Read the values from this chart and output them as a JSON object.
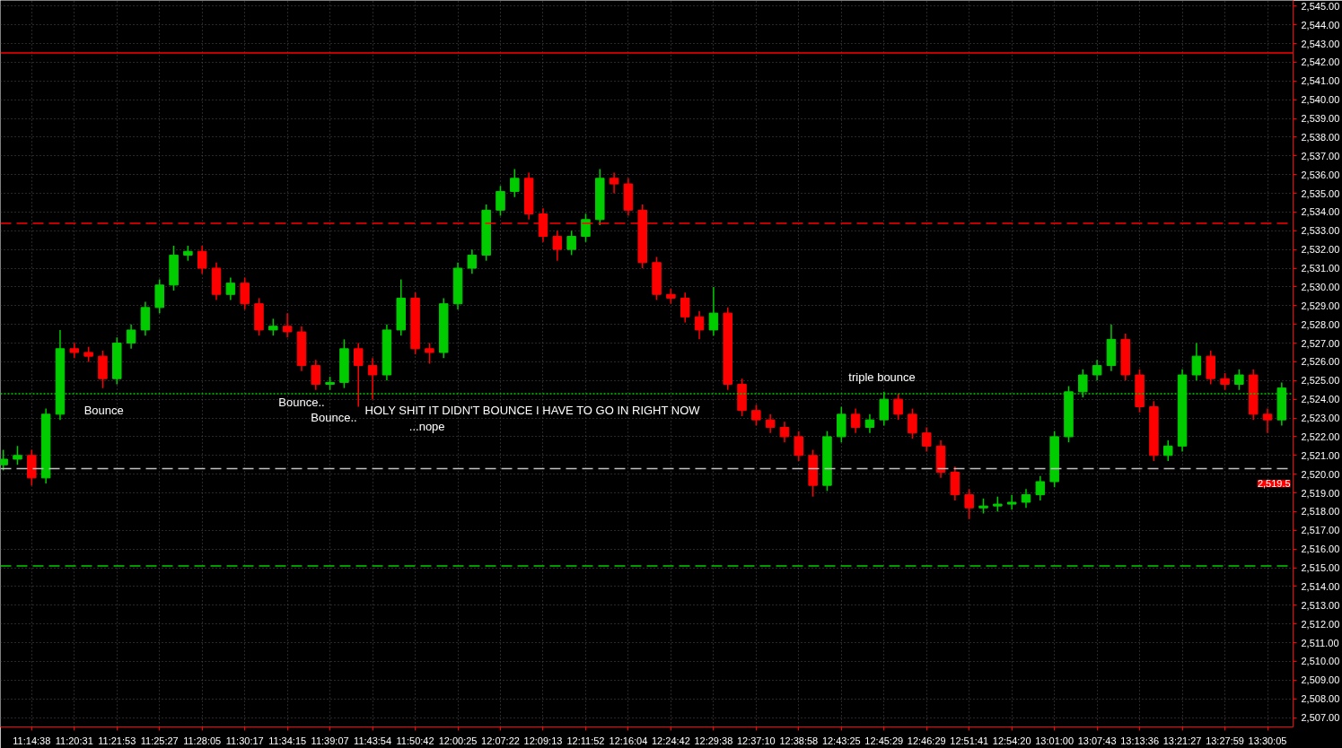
{
  "chart_data": {
    "type": "candlestick",
    "categories": [
      null,
      null,
      "11:14:38",
      null,
      null,
      "11:20:31",
      null,
      null,
      "11:21:53",
      null,
      null,
      "11:25:27",
      null,
      null,
      "11:28:05",
      null,
      null,
      "11:30:17",
      null,
      null,
      "11:34:15",
      null,
      null,
      "11:39:07",
      null,
      null,
      "11:43:54",
      null,
      null,
      "11:50:42",
      null,
      null,
      "12:00:25",
      null,
      null,
      "12:07:22",
      null,
      null,
      "12:09:13",
      null,
      null,
      "12:11:52",
      null,
      null,
      "12:16:04",
      null,
      null,
      "12:24:42",
      null,
      null,
      "12:29:38",
      null,
      null,
      "12:37:10",
      null,
      null,
      "12:38:58",
      null,
      null,
      "12:43:25",
      null,
      null,
      "12:45:29",
      null,
      null,
      "12:46:29",
      null,
      null,
      "12:51:41",
      null,
      null,
      "12:54:20",
      null,
      null,
      "13:01:00",
      null,
      null,
      "13:07:43",
      null,
      null,
      "13:13:36",
      null,
      null,
      "13:21:27",
      null,
      null,
      "13:27:59",
      null,
      null,
      "13:30:05",
      null
    ],
    "ohlc": [
      [
        2520.5,
        2521.3,
        2520.2,
        2520.8
      ],
      [
        2520.8,
        2521.5,
        2520.5,
        2521.0
      ],
      [
        2521.0,
        2521.3,
        2519.4,
        2519.8
      ],
      [
        2519.8,
        2523.5,
        2519.5,
        2523.2
      ],
      [
        2523.2,
        2527.7,
        2522.9,
        2526.7
      ],
      [
        2526.7,
        2527.0,
        2526.2,
        2526.5
      ],
      [
        2526.5,
        2526.8,
        2526.0,
        2526.3
      ],
      [
        2526.3,
        2526.6,
        2524.6,
        2525.1
      ],
      [
        2525.1,
        2527.3,
        2524.8,
        2527.0
      ],
      [
        2527.0,
        2528.0,
        2526.7,
        2527.7
      ],
      [
        2527.7,
        2529.2,
        2527.4,
        2528.9
      ],
      [
        2528.9,
        2530.4,
        2528.6,
        2530.1
      ],
      [
        2530.1,
        2532.2,
        2529.8,
        2531.7
      ],
      [
        2531.7,
        2532.2,
        2531.4,
        2531.9
      ],
      [
        2531.9,
        2532.2,
        2530.7,
        2531.0
      ],
      [
        2531.0,
        2531.3,
        2529.3,
        2529.6
      ],
      [
        2529.6,
        2530.5,
        2529.3,
        2530.2
      ],
      [
        2530.2,
        2530.5,
        2528.8,
        2529.1
      ],
      [
        2529.1,
        2529.4,
        2527.4,
        2527.7
      ],
      [
        2527.7,
        2528.3,
        2527.4,
        2527.9
      ],
      [
        2527.9,
        2528.6,
        2527.3,
        2527.6
      ],
      [
        2527.6,
        2527.9,
        2525.5,
        2525.8
      ],
      [
        2525.8,
        2526.1,
        2524.5,
        2524.8
      ],
      [
        2524.8,
        2525.2,
        2524.5,
        2524.9
      ],
      [
        2524.9,
        2527.2,
        2524.6,
        2526.7
      ],
      [
        2526.7,
        2527.0,
        2523.6,
        2525.8
      ],
      [
        2525.8,
        2526.2,
        2524.0,
        2525.3
      ],
      [
        2525.3,
        2528.0,
        2525.0,
        2527.7
      ],
      [
        2527.7,
        2530.4,
        2527.4,
        2529.4
      ],
      [
        2529.4,
        2529.7,
        2526.4,
        2526.7
      ],
      [
        2526.7,
        2527.0,
        2525.9,
        2526.5
      ],
      [
        2526.5,
        2529.4,
        2526.2,
        2529.1
      ],
      [
        2529.1,
        2531.3,
        2528.8,
        2531.0
      ],
      [
        2531.0,
        2532.0,
        2530.7,
        2531.7
      ],
      [
        2531.7,
        2534.4,
        2531.4,
        2534.1
      ],
      [
        2534.1,
        2535.4,
        2533.8,
        2535.1
      ],
      [
        2535.1,
        2536.3,
        2534.8,
        2535.8
      ],
      [
        2535.8,
        2536.1,
        2533.6,
        2533.9
      ],
      [
        2533.9,
        2534.2,
        2532.4,
        2532.7
      ],
      [
        2532.7,
        2533.0,
        2531.4,
        2532.0
      ],
      [
        2532.0,
        2533.0,
        2531.7,
        2532.7
      ],
      [
        2532.7,
        2533.9,
        2532.4,
        2533.6
      ],
      [
        2533.6,
        2536.3,
        2533.3,
        2535.8
      ],
      [
        2535.8,
        2536.1,
        2535.0,
        2535.5
      ],
      [
        2535.5,
        2535.8,
        2533.8,
        2534.1
      ],
      [
        2534.1,
        2534.4,
        2531.0,
        2531.3
      ],
      [
        2531.3,
        2531.6,
        2529.3,
        2529.6
      ],
      [
        2529.6,
        2529.9,
        2529.1,
        2529.4
      ],
      [
        2529.4,
        2529.7,
        2528.1,
        2528.4
      ],
      [
        2528.4,
        2528.7,
        2527.2,
        2527.7
      ],
      [
        2527.7,
        2530.0,
        2527.4,
        2528.6
      ],
      [
        2528.6,
        2528.9,
        2524.5,
        2524.8
      ],
      [
        2524.8,
        2525.1,
        2523.1,
        2523.4
      ],
      [
        2523.4,
        2523.7,
        2522.6,
        2522.9
      ],
      [
        2522.9,
        2523.2,
        2522.2,
        2522.5
      ],
      [
        2522.5,
        2522.8,
        2521.7,
        2522.0
      ],
      [
        2522.0,
        2522.3,
        2520.7,
        2521.0
      ],
      [
        2521.0,
        2521.3,
        2518.8,
        2519.4
      ],
      [
        2519.4,
        2522.3,
        2519.1,
        2522.0
      ],
      [
        2522.0,
        2523.6,
        2521.7,
        2523.2
      ],
      [
        2523.2,
        2523.5,
        2522.2,
        2522.5
      ],
      [
        2522.5,
        2523.2,
        2522.2,
        2522.9
      ],
      [
        2522.9,
        2524.4,
        2522.6,
        2524.0
      ],
      [
        2524.0,
        2524.3,
        2522.9,
        2523.2
      ],
      [
        2523.2,
        2523.5,
        2521.9,
        2522.2
      ],
      [
        2522.2,
        2522.5,
        2521.2,
        2521.5
      ],
      [
        2521.5,
        2521.8,
        2519.8,
        2520.1
      ],
      [
        2520.1,
        2520.4,
        2518.6,
        2518.9
      ],
      [
        2518.9,
        2519.2,
        2517.6,
        2518.2
      ],
      [
        2518.2,
        2518.7,
        2517.9,
        2518.3
      ],
      [
        2518.3,
        2518.8,
        2518.0,
        2518.4
      ],
      [
        2518.4,
        2518.9,
        2518.1,
        2518.5
      ],
      [
        2518.5,
        2519.2,
        2518.2,
        2518.9
      ],
      [
        2518.9,
        2519.9,
        2518.6,
        2519.6
      ],
      [
        2519.6,
        2522.3,
        2519.3,
        2522.0
      ],
      [
        2522.0,
        2524.7,
        2521.7,
        2524.4
      ],
      [
        2524.4,
        2525.6,
        2524.1,
        2525.3
      ],
      [
        2525.3,
        2526.1,
        2525.0,
        2525.8
      ],
      [
        2525.8,
        2528.0,
        2525.5,
        2527.2
      ],
      [
        2527.2,
        2527.5,
        2525.0,
        2525.3
      ],
      [
        2525.3,
        2525.6,
        2523.3,
        2523.6
      ],
      [
        2523.6,
        2523.9,
        2520.7,
        2521.0
      ],
      [
        2521.0,
        2521.8,
        2520.7,
        2521.5
      ],
      [
        2521.5,
        2525.6,
        2521.2,
        2525.3
      ],
      [
        2525.3,
        2527.0,
        2525.0,
        2526.3
      ],
      [
        2526.3,
        2526.6,
        2524.8,
        2525.1
      ],
      [
        2525.1,
        2525.4,
        2524.5,
        2524.8
      ],
      [
        2524.8,
        2525.6,
        2524.5,
        2525.3
      ],
      [
        2525.3,
        2525.6,
        2522.9,
        2523.2
      ],
      [
        2523.2,
        2523.5,
        2522.2,
        2522.9
      ],
      [
        2522.9,
        2524.9,
        2522.6,
        2524.6
      ]
    ],
    "colors": [
      "#00cc00",
      "#00cc00",
      "#ff0000",
      "#00cc00",
      "#00cc00",
      "#ff0000",
      "#ff0000",
      "#ff0000",
      "#00cc00",
      "#00cc00",
      "#00cc00",
      "#00cc00",
      "#00cc00",
      "#00cc00",
      "#ff0000",
      "#ff0000",
      "#00cc00",
      "#ff0000",
      "#ff0000",
      "#00cc00",
      "#ff0000",
      "#ff0000",
      "#ff0000",
      "#00cc00",
      "#00cc00",
      "#ff0000",
      "#ff0000",
      "#00cc00",
      "#00cc00",
      "#ff0000",
      "#ff0000",
      "#00cc00",
      "#00cc00",
      "#00cc00",
      "#00cc00",
      "#00cc00",
      "#00cc00",
      "#ff0000",
      "#ff0000",
      "#ff0000",
      "#00cc00",
      "#00cc00",
      "#00cc00",
      "#ff0000",
      "#ff0000",
      "#ff0000",
      "#ff0000",
      "#ff0000",
      "#ff0000",
      "#ff0000",
      "#00cc00",
      "#ff0000",
      "#ff0000",
      "#ff0000",
      "#ff0000",
      "#ff0000",
      "#ff0000",
      "#ff0000",
      "#00cc00",
      "#00cc00",
      "#ff0000",
      "#00cc00",
      "#00cc00",
      "#ff0000",
      "#ff0000",
      "#ff0000",
      "#ff0000",
      "#ff0000",
      "#ff0000",
      "#00cc00",
      "#00cc00",
      "#00cc00",
      "#00cc00",
      "#00cc00",
      "#00cc00",
      "#00cc00",
      "#00cc00",
      "#00cc00",
      "#00cc00",
      "#ff0000",
      "#ff0000",
      "#ff0000",
      "#00cc00",
      "#00cc00",
      "#00cc00",
      "#ff0000",
      "#ff0000",
      "#00cc00",
      "#ff0000",
      "#ff0000",
      "#00cc00"
    ],
    "ylim": [
      2506.5,
      2545.3
    ],
    "yticks": [
      {
        "value": 2507,
        "label": "2,507.00"
      },
      {
        "value": 2508,
        "label": "2,508.00"
      },
      {
        "value": 2509,
        "label": "2,509.00"
      },
      {
        "value": 2510,
        "label": "2,510.00"
      },
      {
        "value": 2511,
        "label": "2,511.00"
      },
      {
        "value": 2512,
        "label": "2,512.00"
      },
      {
        "value": 2513,
        "label": "2,513.00"
      },
      {
        "value": 2514,
        "label": "2,514.00"
      },
      {
        "value": 2515,
        "label": "2,515.00"
      },
      {
        "value": 2516,
        "label": "2,516.00"
      },
      {
        "value": 2517,
        "label": "2,517.00"
      },
      {
        "value": 2518,
        "label": "2,518.00"
      },
      {
        "value": 2519,
        "label": "2,519.00"
      },
      {
        "value": 2520,
        "label": "2,520.00"
      },
      {
        "value": 2521,
        "label": "2,521.00"
      },
      {
        "value": 2522,
        "label": "2,522.00"
      },
      {
        "value": 2523,
        "label": "2,523.00"
      },
      {
        "value": 2524,
        "label": "2,524.00"
      },
      {
        "value": 2525,
        "label": "2,525.00"
      },
      {
        "value": 2526,
        "label": "2,526.00"
      },
      {
        "value": 2527,
        "label": "2,527.00"
      },
      {
        "value": 2528,
        "label": "2,528.00"
      },
      {
        "value": 2529,
        "label": "2,529.00"
      },
      {
        "value": 2530,
        "label": "2,530.00"
      },
      {
        "value": 2531,
        "label": "2,531.00"
      },
      {
        "value": 2532,
        "label": "2,532.00"
      },
      {
        "value": 2533,
        "label": "2,533.00"
      },
      {
        "value": 2534,
        "label": "2,534.00"
      },
      {
        "value": 2535,
        "label": "2,535.00"
      },
      {
        "value": 2536,
        "label": "2,536.00"
      },
      {
        "value": 2537,
        "label": "2,537.00"
      },
      {
        "value": 2538,
        "label": "2,538.00"
      },
      {
        "value": 2539,
        "label": "2,539.00"
      },
      {
        "value": 2540,
        "label": "2,540.00"
      },
      {
        "value": 2541,
        "label": "2,541.00"
      },
      {
        "value": 2542,
        "label": "2,542.00"
      },
      {
        "value": 2543,
        "label": "2,543.00"
      },
      {
        "value": 2544,
        "label": "2,544.00"
      },
      {
        "value": 2545,
        "label": "2,545.00"
      }
    ],
    "ref_lines": [
      {
        "axis": "y",
        "value": 2542.5,
        "color": "#ff0000",
        "line_style": "solid"
      },
      {
        "axis": "y",
        "value": 2533.4,
        "color": "#ff0000",
        "line_style": "dashed"
      },
      {
        "axis": "y",
        "value": 2524.3,
        "color": "#00cc00",
        "line_style": "dotted"
      },
      {
        "axis": "y",
        "value": 2520.3,
        "color": "#c0c0c0",
        "line_style": "dashed"
      },
      {
        "axis": "y",
        "value": 2515.1,
        "color": "#00cc00",
        "line_style": "dashed"
      }
    ],
    "annotations": [
      "Bounce",
      "Bounce..",
      "Bounce..",
      "HOLY SHIT IT DIDN'T BOUNCE I HAVE TO GO IN RIGHT NOW",
      "...nope",
      "triple bounce",
      "2,519.5"
    ],
    "grid": true
  }
}
